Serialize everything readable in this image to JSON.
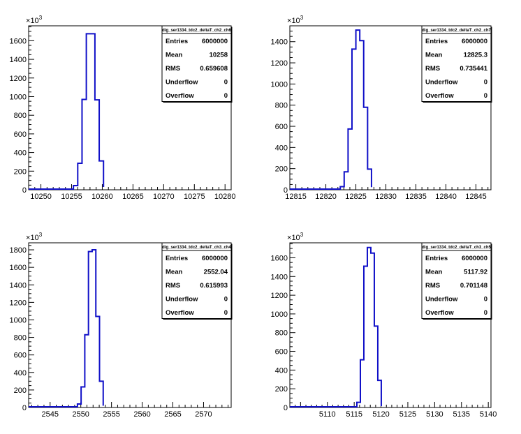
{
  "canvas": {
    "background": "#ffffff",
    "histogram_color": "#1010c8"
  },
  "chart_data": [
    {
      "type": "histogram",
      "stats_title": "dig_ser1334_tdc2_deltaT_ch2_ch6",
      "exponent_label": "10",
      "exponent_power": "3",
      "xlim": [
        10248,
        10281
      ],
      "xticks": [
        10250,
        10255,
        10260,
        10265,
        10270,
        10275,
        10280
      ],
      "xtick_labels": [
        "10250",
        "10255",
        "10260",
        "10265",
        "10270",
        "10275",
        "10280"
      ],
      "ylim": [
        0,
        1760
      ],
      "yticks": [
        0,
        200,
        400,
        600,
        800,
        1000,
        1200,
        1400,
        1600
      ],
      "ytick_labels": [
        "0",
        "200",
        "400",
        "600",
        "800",
        "1000",
        "1200",
        "1400",
        "1600"
      ],
      "bins": {
        "edges": [
          10255.3,
          10256,
          10256.7,
          10257.4,
          10258.1,
          10258.8,
          10259.5,
          10260.2
        ],
        "values": [
          45,
          285,
          970,
          1675,
          1675,
          965,
          310,
          30
        ]
      },
      "stats": [
        {
          "label": "Entries",
          "value": "6000000"
        },
        {
          "label": "Mean",
          "value": "10258"
        },
        {
          "label": "RMS",
          "value": "0.659608"
        },
        {
          "label": "Underflow",
          "value": "0"
        },
        {
          "label": "Overflow",
          "value": "0"
        }
      ]
    },
    {
      "type": "histogram",
      "stats_title": "dig_ser1334_tdc2_deltaT_ch2_ch7",
      "exponent_label": "10",
      "exponent_power": "3",
      "xlim": [
        12814,
        12847.5
      ],
      "xticks": [
        12815,
        12820,
        12825,
        12830,
        12835,
        12840,
        12845
      ],
      "xtick_labels": [
        "12815",
        "12820",
        "12825",
        "12830",
        "12835",
        "12840",
        "12845"
      ],
      "ylim": [
        0,
        1550
      ],
      "yticks": [
        0,
        200,
        400,
        600,
        800,
        1000,
        1200,
        1400
      ],
      "ytick_labels": [
        "0",
        "200",
        "400",
        "600",
        "800",
        "1000",
        "1200",
        "1400"
      ],
      "bins": {
        "edges": [
          12822.4,
          12823.05,
          12823.7,
          12824.35,
          12825,
          12825.65,
          12826.3,
          12826.95,
          12827.6
        ],
        "values": [
          30,
          170,
          575,
          1330,
          1510,
          1410,
          780,
          195,
          25
        ]
      },
      "stats": [
        {
          "label": "Entries",
          "value": "6000000"
        },
        {
          "label": "Mean",
          "value": "12825.3"
        },
        {
          "label": "RMS",
          "value": "0.735441"
        },
        {
          "label": "Underflow",
          "value": "0"
        },
        {
          "label": "Overflow",
          "value": "0"
        }
      ]
    },
    {
      "type": "histogram",
      "stats_title": "dig_ser1334_tdc2_deltaT_ch3_ch4",
      "exponent_label": "10",
      "exponent_power": "3",
      "xlim": [
        2541.5,
        2574.5
      ],
      "xticks": [
        2545,
        2550,
        2555,
        2560,
        2565,
        2570
      ],
      "xtick_labels": [
        "2545",
        "2550",
        "2555",
        "2560",
        "2565",
        "2570"
      ],
      "ylim": [
        0,
        1880
      ],
      "yticks": [
        0,
        200,
        400,
        600,
        800,
        1000,
        1200,
        1400,
        1600,
        1800
      ],
      "ytick_labels": [
        "0",
        "200",
        "400",
        "600",
        "800",
        "1000",
        "1200",
        "1400",
        "1600",
        "1800"
      ],
      "bins": {
        "edges": [
          2549.45,
          2550.05,
          2550.65,
          2551.25,
          2551.85,
          2552.45,
          2553.05,
          2553.65
        ],
        "values": [
          40,
          235,
          830,
          1780,
          1800,
          1040,
          300,
          20
        ]
      },
      "stats": [
        {
          "label": "Entries",
          "value": "6000000"
        },
        {
          "label": "Mean",
          "value": "2552.04"
        },
        {
          "label": "RMS",
          "value": "0.615993"
        },
        {
          "label": "Underflow",
          "value": "0"
        },
        {
          "label": "Overflow",
          "value": "0"
        }
      ]
    },
    {
      "type": "histogram",
      "stats_title": "dig_ser1334_tdc2_deltaT_ch3_ch5",
      "exponent_label": "10",
      "exponent_power": "3",
      "xlim": [
        5103,
        5140.5
      ],
      "xticks": [
        5110,
        5115,
        5120,
        5125,
        5130,
        5135,
        5140
      ],
      "xtick_labels": [
        "5110",
        "5115",
        "5120",
        "5125",
        "5130",
        "5135",
        "5140"
      ],
      "ylim": [
        0,
        1760
      ],
      "yticks": [
        0,
        200,
        400,
        600,
        800,
        1000,
        1200,
        1400,
        1600
      ],
      "ytick_labels": [
        "0",
        "200",
        "400",
        "600",
        "800",
        "1000",
        "1200",
        "1400",
        "1600"
      ],
      "bins": {
        "edges": [
          5115.5,
          5116.15,
          5116.8,
          5117.45,
          5118.1,
          5118.75,
          5119.4,
          5120.05
        ],
        "values": [
          55,
          510,
          1510,
          1710,
          1650,
          870,
          290,
          15
        ]
      },
      "stats": [
        {
          "label": "Entries",
          "value": "6000000"
        },
        {
          "label": "Mean",
          "value": "5117.92"
        },
        {
          "label": "RMS",
          "value": "0.701148"
        },
        {
          "label": "Underflow",
          "value": "0"
        },
        {
          "label": "Overflow",
          "value": "0"
        }
      ]
    }
  ]
}
